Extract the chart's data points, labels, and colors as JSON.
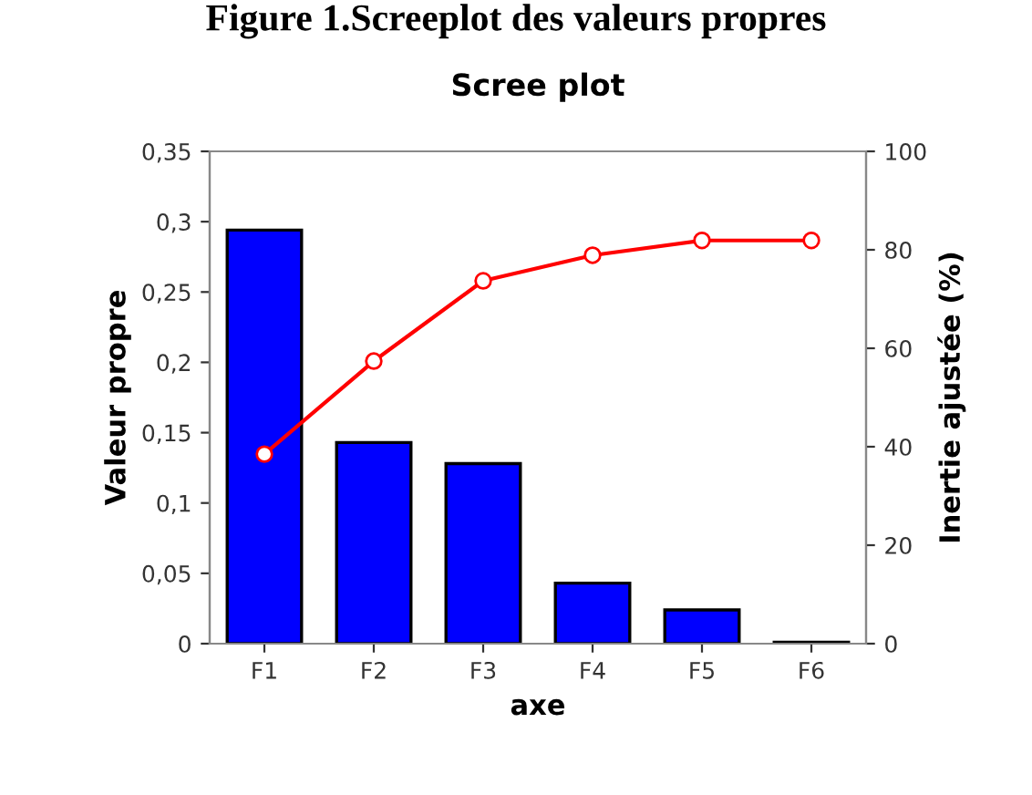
{
  "chart_data": {
    "type": "bar",
    "title": "Scree plot",
    "xlabel": "axe",
    "ylabel": "Valeur propre",
    "y2label": "Inertie ajustée (%)",
    "annotations": [
      "Figure 1.Screeplot des valeurs propres"
    ],
    "categories": [
      "F1",
      "F2",
      "F3",
      "F4",
      "F5",
      "F6"
    ],
    "series": [
      {
        "color": "#0000ff",
        "values": [
          0.294,
          0.143,
          0.128,
          0.043,
          0.024,
          0.001
        ]
      },
      {
        "type": "line",
        "axis": "y2",
        "color": "#ff0000",
        "marker": "circle",
        "line_style": "solid",
        "values": [
          38.5,
          57.4,
          73.7,
          78.9,
          81.9,
          81.9
        ]
      }
    ],
    "ylim": [
      0,
      0.35
    ],
    "yticks": [
      {
        "value": 0,
        "label": "0"
      },
      {
        "value": 0.05,
        "label": "0,05"
      },
      {
        "value": 0.1,
        "label": "0,1"
      },
      {
        "value": 0.15,
        "label": "0,15"
      },
      {
        "value": 0.2,
        "label": "0,2"
      },
      {
        "value": 0.25,
        "label": "0,25"
      },
      {
        "value": 0.3,
        "label": "0,3"
      },
      {
        "value": 0.35,
        "label": "0,35"
      }
    ],
    "y2lim": [
      0,
      100
    ],
    "y2ticks": [
      0,
      20,
      40,
      60,
      80,
      100
    ],
    "grid": false,
    "legend": false
  }
}
